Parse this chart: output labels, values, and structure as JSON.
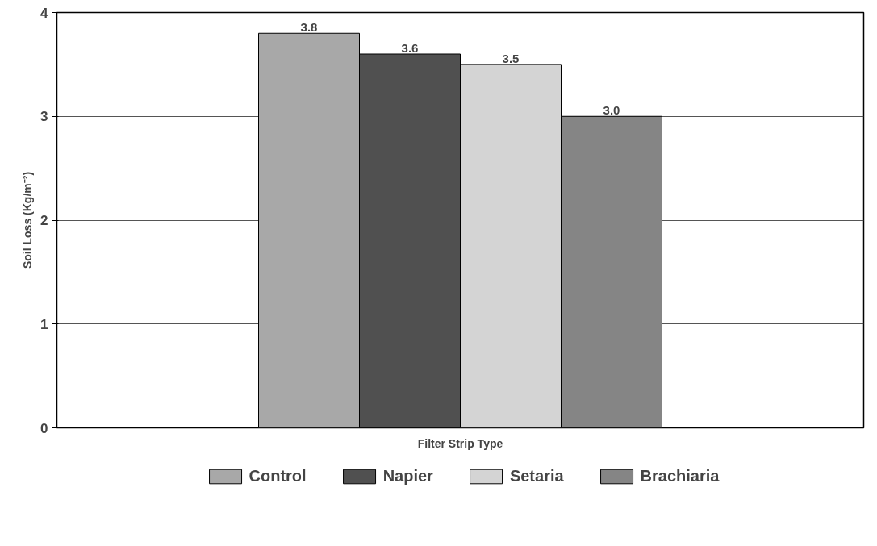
{
  "chart_data": {
    "type": "bar",
    "xlabel": "Filter Strip Type",
    "ylabel": "Soil Loss (Kg/m⁻²)",
    "categories": [
      null
    ],
    "series": [
      {
        "name": "Control",
        "color": "#a8a8a8",
        "values": [
          3.8
        ],
        "value_labels": [
          "3.8"
        ]
      },
      {
        "name": "Napier",
        "color": "#505050",
        "values": [
          3.6
        ],
        "value_labels": [
          "3.6"
        ]
      },
      {
        "name": "Setaria",
        "color": "#d4d4d4",
        "values": [
          3.5
        ],
        "value_labels": [
          "3.5"
        ]
      },
      {
        "name": "Brachiaria",
        "color": "#858585",
        "values": [
          3.0
        ],
        "value_labels": [
          "3.0"
        ]
      }
    ],
    "ylim": [
      0,
      4
    ],
    "yticks": [
      0,
      1,
      2,
      3,
      4
    ],
    "grid": "y",
    "legend": "bottom"
  }
}
